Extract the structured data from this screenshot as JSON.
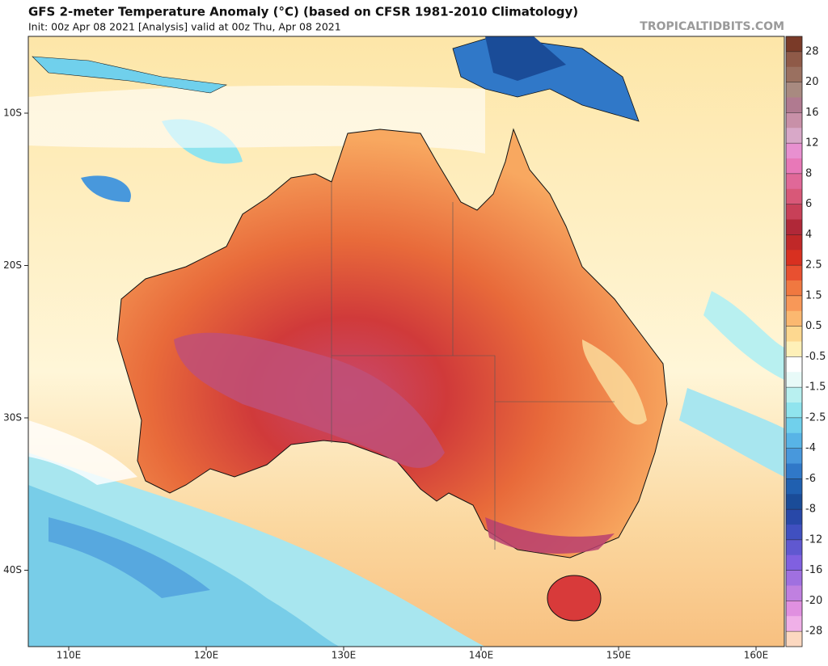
{
  "header": {
    "title": "GFS 2-meter Temperature Anomaly (°C) (based on CFSR 1981-2010 Climatology)",
    "subtitle": "Init: 00z Apr 08 2021   [Analysis]   valid at 00z Thu, Apr 08 2021",
    "watermark": "TROPICALTIDBITS.COM"
  },
  "map": {
    "lat_labels": [
      "10S",
      "20S",
      "30S",
      "40S"
    ],
    "lon_labels": [
      "110E",
      "120E",
      "130E",
      "140E",
      "150E",
      "160E"
    ]
  },
  "colorbar": {
    "labels": [
      28,
      20,
      16,
      12,
      8,
      6,
      4,
      2.5,
      1.5,
      0.5,
      -0.5,
      -1.5,
      -2.5,
      -4,
      -6,
      -8,
      -12,
      -16,
      -20,
      -28
    ],
    "colors": [
      "#7a3a28",
      "#8f5a48",
      "#9a7060",
      "#a88a80",
      "#b07a90",
      "#c890a8",
      "#d8a8c8",
      "#e890d0",
      "#e878b8",
      "#e06898",
      "#d85878",
      "#c84058",
      "#b02838",
      "#c02828",
      "#d83020",
      "#e85030",
      "#f07840",
      "#f89858",
      "#fbb870",
      "#fdd890",
      "#fef0b8",
      "#ffffff",
      "#e8faf8",
      "#b8f0f0",
      "#90e4ee",
      "#70d0ec",
      "#58b4e6",
      "#4898dc",
      "#3078c8",
      "#2060b0",
      "#1a4c98",
      "#2848a8",
      "#4050c0",
      "#6058d0",
      "#8060e0",
      "#a070e0",
      "#c080e0",
      "#e090e0",
      "#f0b0e8",
      "#fcd8c0"
    ]
  }
}
